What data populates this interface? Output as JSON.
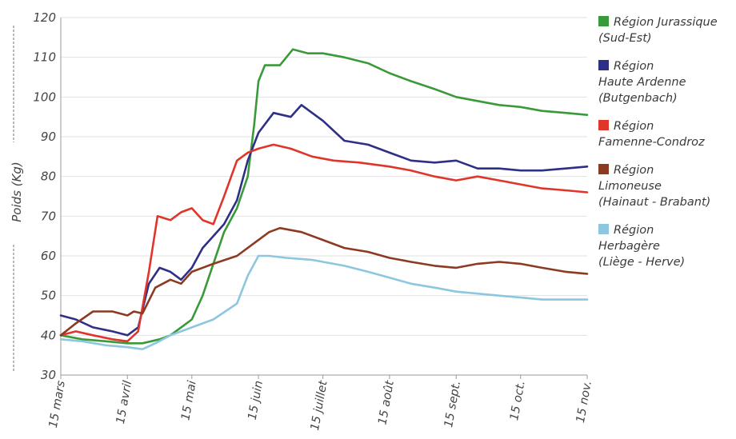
{
  "chart_data": {
    "type": "line",
    "title": "",
    "xlabel": "",
    "ylabel": "Poids (Kg)",
    "ylim": [
      30,
      120
    ],
    "yticks": [
      30,
      40,
      50,
      60,
      70,
      80,
      90,
      100,
      110,
      120
    ],
    "xlim": [
      "2014-03-15",
      "2014-11-15"
    ],
    "x_tick_labels": [
      "15 mars",
      "15 avril",
      "15 mai",
      "15 juin",
      "15 juillet",
      "15 août",
      "15 sept.",
      "15 oct.",
      "15 nov."
    ],
    "x_tick_dates": [
      "2014-03-15",
      "2014-04-15",
      "2014-05-15",
      "2014-06-15",
      "2014-07-15",
      "2014-08-15",
      "2014-09-15",
      "2014-10-15",
      "2014-11-15"
    ],
    "grid": "horizontal",
    "legend_position": "right",
    "series": [
      {
        "name": "Région Jurassique (Sud-Est)",
        "color": "#3a9a3a",
        "x": [
          "2014-03-15",
          "2014-03-25",
          "2014-04-05",
          "2014-04-15",
          "2014-04-22",
          "2014-04-30",
          "2014-05-05",
          "2014-05-10",
          "2014-05-15",
          "2014-05-20",
          "2014-05-25",
          "2014-05-30",
          "2014-06-05",
          "2014-06-10",
          "2014-06-13",
          "2014-06-15",
          "2014-06-18",
          "2014-06-25",
          "2014-07-01",
          "2014-07-08",
          "2014-07-15",
          "2014-07-25",
          "2014-08-05",
          "2014-08-15",
          "2014-08-25",
          "2014-09-05",
          "2014-09-15",
          "2014-09-25",
          "2014-10-05",
          "2014-10-15",
          "2014-10-25",
          "2014-11-05",
          "2014-11-15"
        ],
        "y": [
          40,
          39,
          38.5,
          38,
          38,
          39,
          40,
          42,
          44,
          50,
          58,
          66,
          72,
          80,
          93,
          104,
          108,
          108,
          112,
          111,
          111,
          110,
          108.5,
          106,
          104,
          102,
          100,
          99,
          98,
          97.5,
          96.5,
          96,
          95.5
        ]
      },
      {
        "name": "Région Haute Ardenne (Butgenbach)",
        "color": "#2e2f86",
        "x": [
          "2014-03-15",
          "2014-03-22",
          "2014-03-30",
          "2014-04-08",
          "2014-04-15",
          "2014-04-20",
          "2014-04-25",
          "2014-04-30",
          "2014-05-05",
          "2014-05-10",
          "2014-05-15",
          "2014-05-20",
          "2014-05-25",
          "2014-05-30",
          "2014-06-05",
          "2014-06-10",
          "2014-06-15",
          "2014-06-22",
          "2014-06-30",
          "2014-07-05",
          "2014-07-10",
          "2014-07-15",
          "2014-07-25",
          "2014-08-05",
          "2014-08-15",
          "2014-08-25",
          "2014-09-05",
          "2014-09-15",
          "2014-09-25",
          "2014-10-05",
          "2014-10-15",
          "2014-10-25",
          "2014-11-05",
          "2014-11-15"
        ],
        "y": [
          45,
          44,
          42,
          41,
          40,
          42,
          53,
          57,
          56,
          54,
          57,
          62,
          65,
          68,
          74,
          84,
          91,
          96,
          95,
          98,
          96,
          94,
          89,
          88,
          86,
          84,
          83.5,
          84,
          82,
          82,
          81.5,
          81.5,
          82,
          82.5
        ]
      },
      {
        "name": "Région Famenne-Condroz",
        "color": "#e0352b",
        "x": [
          "2014-03-15",
          "2014-03-22",
          "2014-03-30",
          "2014-04-08",
          "2014-04-15",
          "2014-04-20",
          "2014-04-25",
          "2014-04-29",
          "2014-05-05",
          "2014-05-10",
          "2014-05-15",
          "2014-05-20",
          "2014-05-25",
          "2014-05-30",
          "2014-06-05",
          "2014-06-10",
          "2014-06-15",
          "2014-06-22",
          "2014-06-30",
          "2014-07-10",
          "2014-07-20",
          "2014-08-01",
          "2014-08-15",
          "2014-08-25",
          "2014-09-05",
          "2014-09-15",
          "2014-09-25",
          "2014-10-05",
          "2014-10-15",
          "2014-10-25",
          "2014-11-05",
          "2014-11-15"
        ],
        "y": [
          40,
          41,
          40,
          39,
          38.5,
          41,
          56,
          70,
          69,
          71,
          72,
          69,
          68,
          75,
          84,
          86,
          87,
          88,
          87,
          85,
          84,
          83.5,
          82.5,
          81.5,
          80,
          79,
          80,
          79,
          78,
          77,
          76.5,
          76
        ]
      },
      {
        "name": "Région Limoneuse (Hainaut - Brabant)",
        "color": "#8c3a22",
        "x": [
          "2014-03-15",
          "2014-03-22",
          "2014-03-30",
          "2014-04-08",
          "2014-04-15",
          "2014-04-18",
          "2014-04-22",
          "2014-04-28",
          "2014-05-05",
          "2014-05-10",
          "2014-05-15",
          "2014-05-25",
          "2014-06-05",
          "2014-06-15",
          "2014-06-20",
          "2014-06-25",
          "2014-07-05",
          "2014-07-15",
          "2014-07-25",
          "2014-08-05",
          "2014-08-15",
          "2014-08-25",
          "2014-09-05",
          "2014-09-15",
          "2014-09-25",
          "2014-10-05",
          "2014-10-15",
          "2014-10-25",
          "2014-11-05",
          "2014-11-15"
        ],
        "y": [
          40,
          43,
          46,
          46,
          45,
          46,
          45.5,
          52,
          54,
          53,
          56,
          58,
          60,
          64,
          66,
          67,
          66,
          64,
          62,
          61,
          59.5,
          58.5,
          57.5,
          57,
          58,
          58.5,
          58,
          57,
          56,
          55.5
        ]
      },
      {
        "name": "Région Herbagère (Liège - Herve)",
        "color": "#8dc7df",
        "x": [
          "2014-03-15",
          "2014-03-25",
          "2014-04-05",
          "2014-04-15",
          "2014-04-22",
          "2014-04-28",
          "2014-05-05",
          "2014-05-10",
          "2014-05-15",
          "2014-05-25",
          "2014-06-05",
          "2014-06-10",
          "2014-06-15",
          "2014-06-20",
          "2014-06-28",
          "2014-07-10",
          "2014-07-25",
          "2014-08-05",
          "2014-08-15",
          "2014-08-25",
          "2014-09-05",
          "2014-09-15",
          "2014-09-25",
          "2014-10-05",
          "2014-10-15",
          "2014-10-25",
          "2014-11-05",
          "2014-11-15"
        ],
        "y": [
          39,
          38.5,
          37.5,
          37,
          36.5,
          38,
          40,
          41,
          42,
          44,
          48,
          55,
          60,
          60,
          59.5,
          59,
          57.5,
          56,
          54.5,
          53,
          52,
          51,
          50.5,
          50,
          49.5,
          49,
          49,
          49
        ]
      }
    ]
  }
}
